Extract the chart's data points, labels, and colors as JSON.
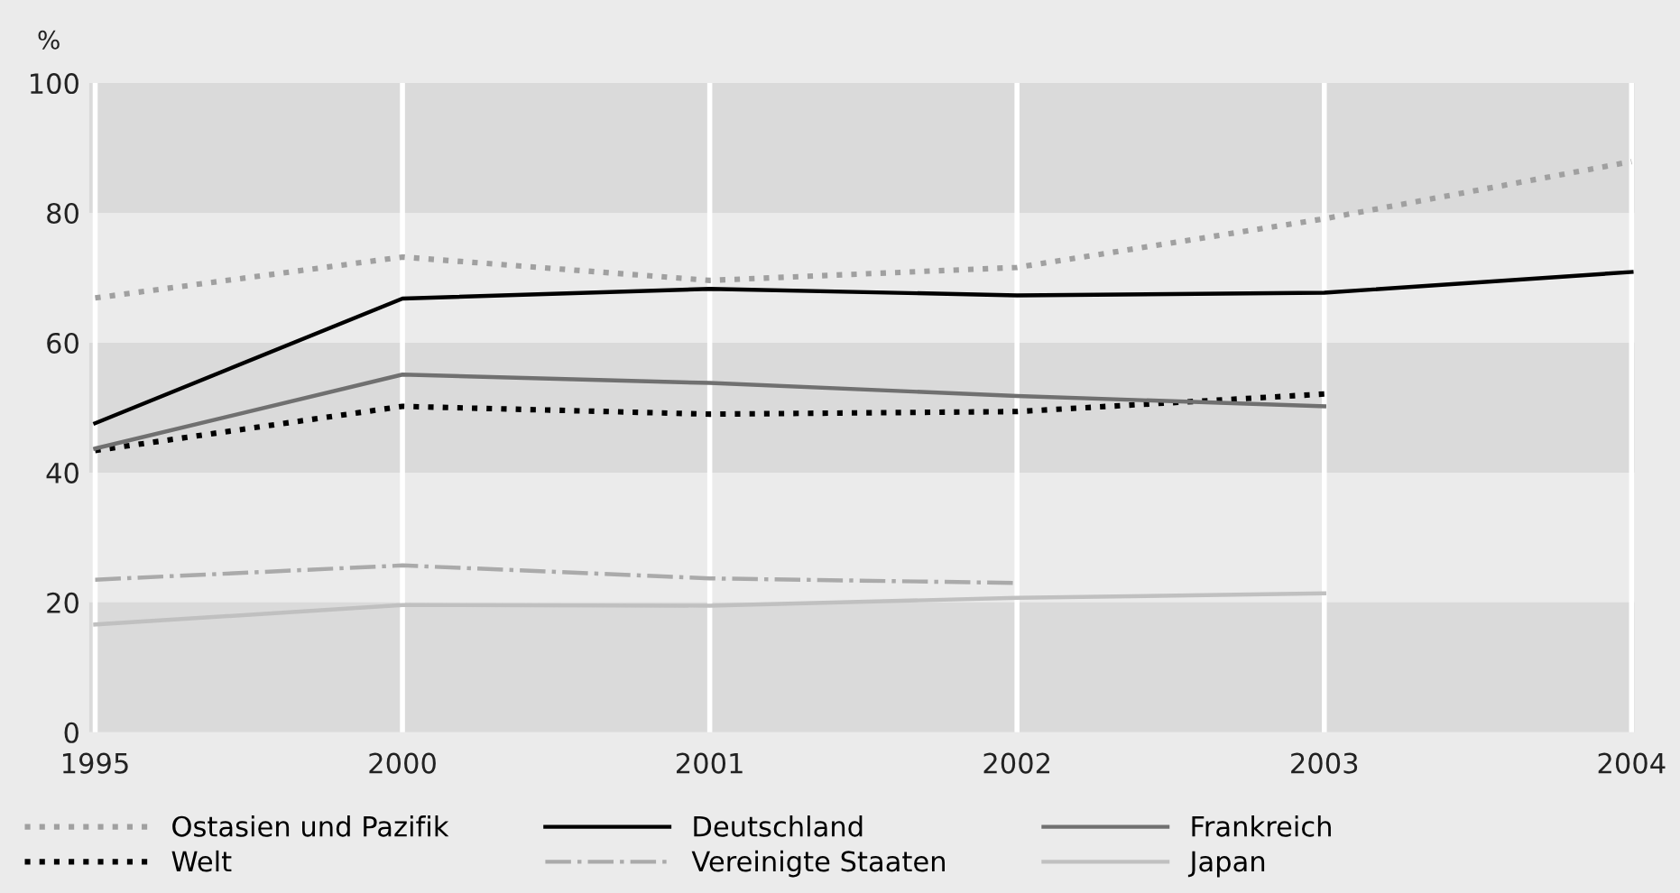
{
  "chart_data": {
    "type": "line",
    "ylabel": "%",
    "categories": [
      "1995",
      "2000",
      "2001",
      "2002",
      "2003",
      "2004"
    ],
    "ylim": [
      0,
      100
    ],
    "yticks": [
      0,
      20,
      40,
      60,
      80,
      100
    ],
    "grid": "x",
    "legend": "bottom",
    "bands": [
      {
        "axis": "y",
        "from": 0,
        "to": 20,
        "color": "#dadada"
      },
      {
        "axis": "y",
        "from": 40,
        "to": 60,
        "color": "#dadada"
      },
      {
        "axis": "y",
        "from": 80,
        "to": 100,
        "color": "#dadada"
      }
    ],
    "series": [
      {
        "name": "Ostasien und Pazifik",
        "color": "#a0a0a0",
        "line_style": "dotted",
        "values": [
          66.9,
          73.2,
          69.6,
          71.6,
          79.1,
          87.9
        ]
      },
      {
        "name": "Welt",
        "color": "#000000",
        "line_style": "dotted",
        "values": [
          43.4,
          50.2,
          49.0,
          49.4,
          52.1,
          null
        ]
      },
      {
        "name": "Deutschland",
        "color": "#000000",
        "line_style": "solid",
        "values": [
          47.6,
          66.8,
          68.3,
          67.3,
          67.7,
          70.9
        ]
      },
      {
        "name": "Vereinigte Staaten",
        "color": "#aaaaaa",
        "line_style": "dashdot",
        "values": [
          23.5,
          25.7,
          23.7,
          23.0,
          null,
          null
        ]
      },
      {
        "name": "Frankreich",
        "color": "#707070",
        "line_style": "solid",
        "values": [
          43.7,
          55.1,
          53.8,
          51.8,
          50.2,
          null
        ]
      },
      {
        "name": "Japan",
        "color": "#c0c0c0",
        "line_style": "solid",
        "values": [
          16.6,
          19.6,
          19.5,
          20.7,
          21.4,
          null
        ]
      }
    ]
  }
}
